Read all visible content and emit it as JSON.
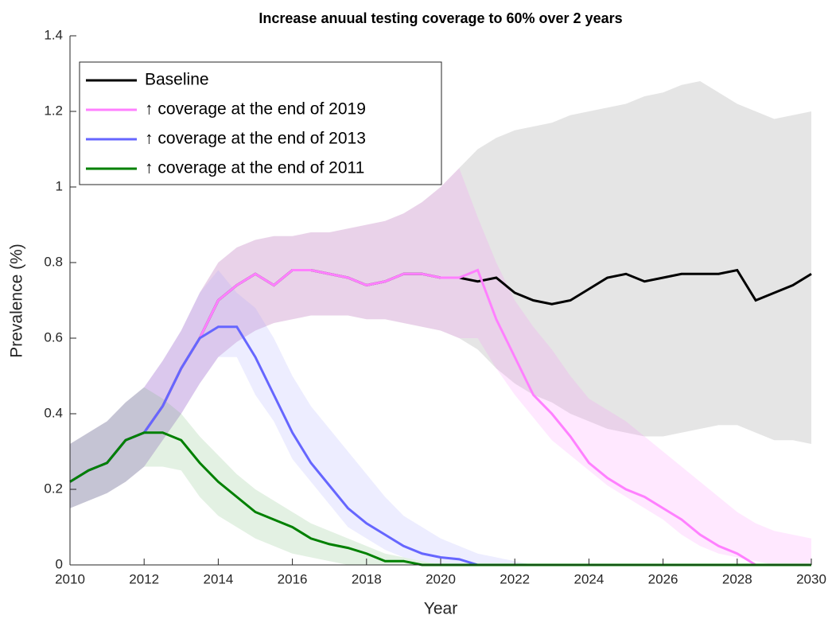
{
  "chart_data": {
    "type": "line",
    "title": "Increase anuual testing coverage to 60% over 2 years",
    "xlabel": "Year",
    "ylabel": "Prevalence (%)",
    "x": [
      2010,
      2010.5,
      2011,
      2011.5,
      2012,
      2012.5,
      2013,
      2013.5,
      2014,
      2014.5,
      2015,
      2015.5,
      2016,
      2016.5,
      2017,
      2017.5,
      2018,
      2018.5,
      2019,
      2019.5,
      2020,
      2020.5,
      2021,
      2021.5,
      2022,
      2022.5,
      2023,
      2023.5,
      2024,
      2024.5,
      2025,
      2025.5,
      2026,
      2026.5,
      2027,
      2027.5,
      2028,
      2028.5,
      2029,
      2029.5,
      2030
    ],
    "xlim": [
      2010,
      2030
    ],
    "xticks": [
      2010,
      2012,
      2014,
      2016,
      2018,
      2020,
      2022,
      2024,
      2026,
      2028,
      2030
    ],
    "ylim": [
      0,
      1.4
    ],
    "yticks": [
      0,
      0.2,
      0.4,
      0.6,
      0.8,
      1,
      1.2,
      1.4
    ],
    "series": [
      {
        "name": "Baseline",
        "color": "#000000",
        "band_color": "#bfbfbf",
        "values": [
          0.22,
          0.25,
          0.27,
          0.33,
          0.35,
          0.42,
          0.52,
          0.6,
          0.7,
          0.74,
          0.77,
          0.74,
          0.78,
          0.78,
          0.77,
          0.76,
          0.74,
          0.75,
          0.77,
          0.77,
          0.76,
          0.76,
          0.75,
          0.76,
          0.72,
          0.7,
          0.69,
          0.7,
          0.73,
          0.76,
          0.77,
          0.75,
          0.76,
          0.77,
          0.77,
          0.77,
          0.78,
          0.7,
          0.72,
          0.74,
          0.77
        ],
        "lower": [
          0.15,
          0.17,
          0.19,
          0.22,
          0.26,
          0.33,
          0.4,
          0.48,
          0.55,
          0.59,
          0.62,
          0.64,
          0.65,
          0.66,
          0.66,
          0.66,
          0.65,
          0.65,
          0.64,
          0.63,
          0.62,
          0.6,
          0.57,
          0.52,
          0.48,
          0.45,
          0.43,
          0.4,
          0.38,
          0.36,
          0.35,
          0.34,
          0.34,
          0.35,
          0.36,
          0.37,
          0.37,
          0.35,
          0.33,
          0.33,
          0.32
        ],
        "upper": [
          0.32,
          0.35,
          0.38,
          0.43,
          0.47,
          0.54,
          0.62,
          0.72,
          0.8,
          0.84,
          0.86,
          0.87,
          0.87,
          0.88,
          0.88,
          0.89,
          0.9,
          0.91,
          0.93,
          0.96,
          1.0,
          1.05,
          1.1,
          1.13,
          1.15,
          1.16,
          1.17,
          1.19,
          1.2,
          1.21,
          1.22,
          1.24,
          1.25,
          1.27,
          1.28,
          1.25,
          1.22,
          1.2,
          1.18,
          1.19,
          1.2
        ]
      },
      {
        "name": "↑ coverage at the end of 2019",
        "color": "#ff80ff",
        "band_color": "#ff80ff",
        "values": [
          0.22,
          0.25,
          0.27,
          0.33,
          0.35,
          0.42,
          0.52,
          0.6,
          0.7,
          0.74,
          0.77,
          0.74,
          0.78,
          0.78,
          0.77,
          0.76,
          0.74,
          0.75,
          0.77,
          0.77,
          0.76,
          0.76,
          0.78,
          0.65,
          0.55,
          0.45,
          0.4,
          0.34,
          0.27,
          0.23,
          0.2,
          0.18,
          0.15,
          0.12,
          0.08,
          0.05,
          0.03,
          0,
          0,
          0,
          0
        ],
        "lower": [
          0.15,
          0.17,
          0.19,
          0.22,
          0.26,
          0.33,
          0.4,
          0.48,
          0.55,
          0.59,
          0.62,
          0.64,
          0.65,
          0.66,
          0.66,
          0.66,
          0.65,
          0.65,
          0.64,
          0.63,
          0.62,
          0.6,
          0.6,
          0.52,
          0.45,
          0.39,
          0.33,
          0.29,
          0.25,
          0.21,
          0.18,
          0.15,
          0.12,
          0.08,
          0.05,
          0.03,
          0.02,
          0.01,
          0,
          0,
          0
        ],
        "upper": [
          0.32,
          0.35,
          0.38,
          0.43,
          0.47,
          0.54,
          0.62,
          0.72,
          0.8,
          0.84,
          0.86,
          0.87,
          0.87,
          0.88,
          0.88,
          0.89,
          0.9,
          0.91,
          0.93,
          0.96,
          1.0,
          1.05,
          0.92,
          0.8,
          0.7,
          0.63,
          0.57,
          0.5,
          0.44,
          0.41,
          0.38,
          0.34,
          0.3,
          0.26,
          0.22,
          0.18,
          0.14,
          0.11,
          0.09,
          0.08,
          0.07
        ]
      },
      {
        "name": "↑ coverage at the end of 2013",
        "color": "#6666ff",
        "band_color": "#9999ff",
        "values": [
          0.22,
          0.25,
          0.27,
          0.33,
          0.35,
          0.42,
          0.52,
          0.6,
          0.63,
          0.63,
          0.55,
          0.45,
          0.35,
          0.27,
          0.21,
          0.15,
          0.11,
          0.08,
          0.05,
          0.03,
          0.02,
          0.015,
          0,
          0,
          0,
          0,
          0,
          0,
          0,
          0,
          0,
          0,
          0,
          0,
          0,
          0,
          0,
          0,
          0,
          0,
          0
        ],
        "lower": [
          0.15,
          0.17,
          0.19,
          0.22,
          0.26,
          0.33,
          0.4,
          0.48,
          0.55,
          0.55,
          0.45,
          0.38,
          0.28,
          0.22,
          0.16,
          0.1,
          0.07,
          0.04,
          0.02,
          0.01,
          0,
          0,
          0,
          0,
          0,
          0,
          0,
          0,
          0,
          0,
          0,
          0,
          0,
          0,
          0,
          0,
          0,
          0,
          0,
          0,
          0
        ],
        "upper": [
          0.32,
          0.35,
          0.38,
          0.43,
          0.47,
          0.54,
          0.62,
          0.72,
          0.78,
          0.72,
          0.68,
          0.6,
          0.5,
          0.42,
          0.36,
          0.3,
          0.24,
          0.18,
          0.13,
          0.1,
          0.07,
          0.05,
          0.03,
          0.02,
          0.01,
          0,
          0,
          0,
          0,
          0,
          0,
          0,
          0,
          0,
          0,
          0,
          0,
          0,
          0,
          0,
          0
        ]
      },
      {
        "name": "↑ coverage at the end of 2011",
        "color": "#008000",
        "band_color": "#66b366",
        "values": [
          0.22,
          0.25,
          0.27,
          0.33,
          0.35,
          0.35,
          0.33,
          0.27,
          0.22,
          0.18,
          0.14,
          0.12,
          0.1,
          0.07,
          0.055,
          0.045,
          0.03,
          0.01,
          0.01,
          0,
          0,
          0,
          0,
          0,
          0,
          0,
          0,
          0,
          0,
          0,
          0,
          0,
          0,
          0,
          0,
          0,
          0,
          0,
          0,
          0,
          0
        ],
        "lower": [
          0.15,
          0.17,
          0.19,
          0.22,
          0.26,
          0.26,
          0.25,
          0.18,
          0.13,
          0.1,
          0.07,
          0.05,
          0.03,
          0.02,
          0.01,
          0,
          0,
          0,
          0,
          0,
          0,
          0,
          0,
          0,
          0,
          0,
          0,
          0,
          0,
          0,
          0,
          0,
          0,
          0,
          0,
          0,
          0,
          0,
          0,
          0,
          0
        ],
        "upper": [
          0.32,
          0.35,
          0.38,
          0.43,
          0.47,
          0.44,
          0.4,
          0.34,
          0.29,
          0.24,
          0.2,
          0.17,
          0.14,
          0.11,
          0.09,
          0.07,
          0.05,
          0.03,
          0.02,
          0.01,
          0,
          0,
          0,
          0,
          0,
          0,
          0,
          0,
          0,
          0,
          0,
          0,
          0,
          0,
          0,
          0,
          0,
          0,
          0,
          0,
          0
        ]
      }
    ]
  }
}
